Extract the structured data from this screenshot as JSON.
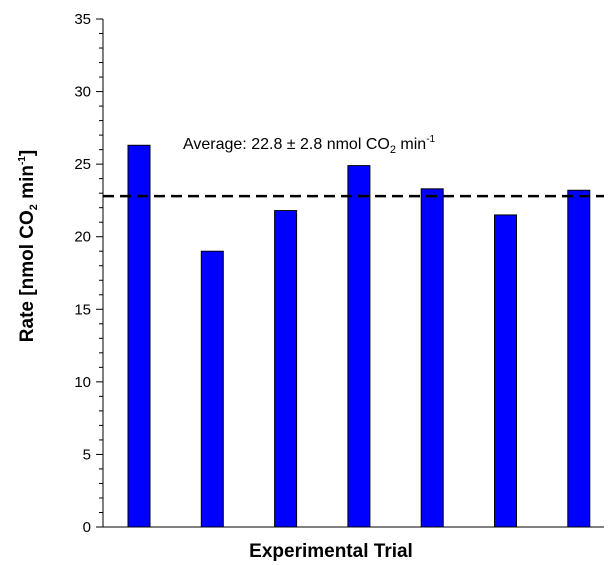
{
  "chart_data": {
    "type": "bar",
    "categories": [
      "",
      "",
      "",
      "",
      "",
      "",
      ""
    ],
    "series": [
      {
        "values": [
          26.3,
          19.0,
          21.8,
          24.9,
          23.3,
          21.5,
          23.2
        ],
        "color": "#0000ff"
      }
    ],
    "title": "",
    "xlabel": "Experimental Trial",
    "ylabel": {
      "prefix": "Rate [nmol CO",
      "sub": "2",
      "mid": " min",
      "sup": "-1",
      "suffix": "]"
    },
    "ylim": [
      0,
      35
    ],
    "y_ticks": [
      "0",
      "5",
      "10",
      "15",
      "20",
      "25",
      "30",
      "35"
    ],
    "y_minor_step": 1,
    "grid": false,
    "reference_line": {
      "value": 22.8,
      "style": "dashed"
    },
    "annotation": {
      "prefix": "Average: 22.8 ± 2.8 nmol CO",
      "sub": "2",
      "mid": " min",
      "sup": "-1"
    }
  }
}
